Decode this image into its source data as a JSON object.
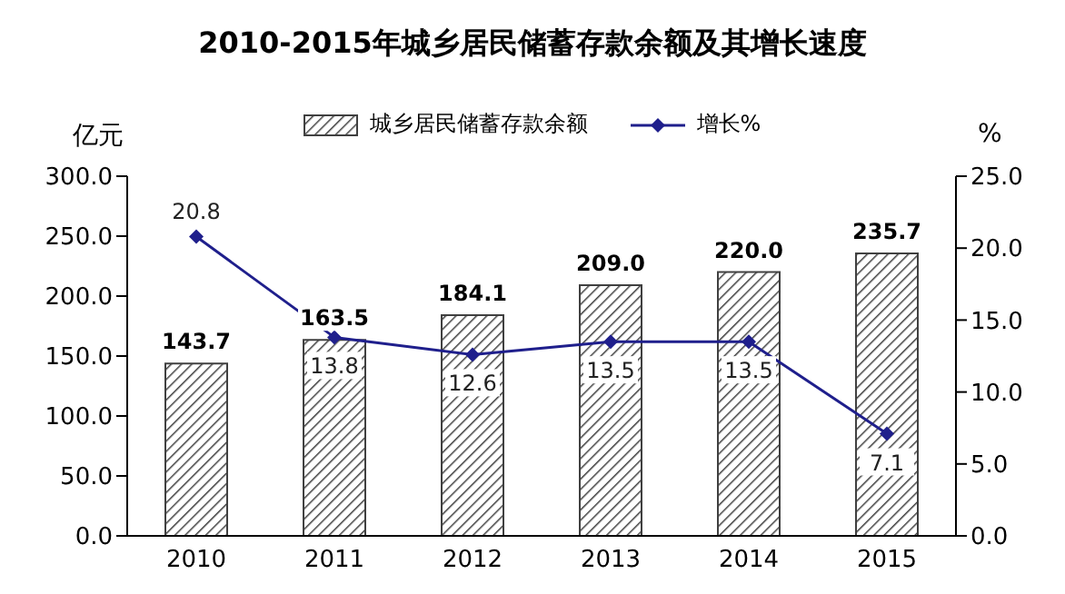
{
  "chart_data": {
    "type": "bar",
    "title": "2010-2015年城乡居民储蓄存款余额及其增长速度",
    "ylabel": "亿元",
    "y2label": "%",
    "categories": [
      "2010",
      "2011",
      "2012",
      "2013",
      "2014",
      "2015"
    ],
    "series": [
      {
        "name": "城乡居民储蓄存款余额",
        "color": "#404040",
        "values": [
          143.7,
          163.5,
          184.1,
          209.0,
          220.0,
          235.7
        ],
        "value_labels": [
          "143.7",
          "163.5",
          "184.1",
          "209.0",
          "220.0",
          "235.7"
        ]
      },
      {
        "name": "增长%",
        "type": "line",
        "axis": "y2",
        "color": "#1f1f8c",
        "values": [
          20.8,
          13.8,
          12.6,
          13.5,
          13.5,
          7.1
        ],
        "value_labels": [
          "20.8",
          "13.8",
          "12.6",
          "13.5",
          "13.5",
          "7.1"
        ]
      }
    ],
    "ylim": [
      0,
      300
    ],
    "yticks": [
      {
        "value": 0,
        "label": "0.0"
      },
      {
        "value": 50,
        "label": "50.0"
      },
      {
        "value": 100,
        "label": "100.0"
      },
      {
        "value": 150,
        "label": "150.0"
      },
      {
        "value": 200,
        "label": "200.0"
      },
      {
        "value": 250,
        "label": "250.0"
      },
      {
        "value": 300,
        "label": "300.0"
      }
    ],
    "y2lim": [
      0,
      25
    ],
    "y2ticks": [
      {
        "value": 0,
        "label": "0.0"
      },
      {
        "value": 5,
        "label": "5.0"
      },
      {
        "value": 10,
        "label": "10.0"
      },
      {
        "value": 15,
        "label": "15.0"
      },
      {
        "value": 20,
        "label": "20.0"
      },
      {
        "value": 25,
        "label": "25.0"
      }
    ],
    "marker": "diamond",
    "legend": "top",
    "grid": false
  }
}
